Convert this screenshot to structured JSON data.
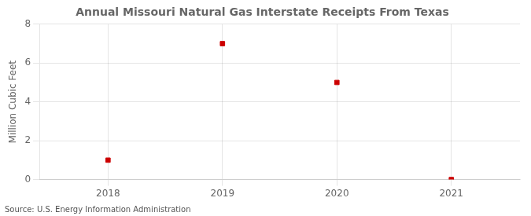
{
  "chart_data": {
    "type": "scatter",
    "title": "Annual Missouri Natural Gas Interstate Receipts From Texas",
    "ylabel": "Million Cubic Feet",
    "source": "Source: U.S. Energy Information Administration",
    "x": [
      2018,
      2019,
      2020,
      2021
    ],
    "values": [
      1,
      7,
      5,
      0
    ],
    "color": "#cc0000",
    "marker": "square",
    "xlim": [
      2017.4,
      2021.6
    ],
    "xticks": [
      2018,
      2019,
      2020,
      2021
    ],
    "ylim": [
      0,
      8
    ],
    "yticks": [
      0,
      2,
      4,
      6,
      8
    ],
    "grid": true
  }
}
